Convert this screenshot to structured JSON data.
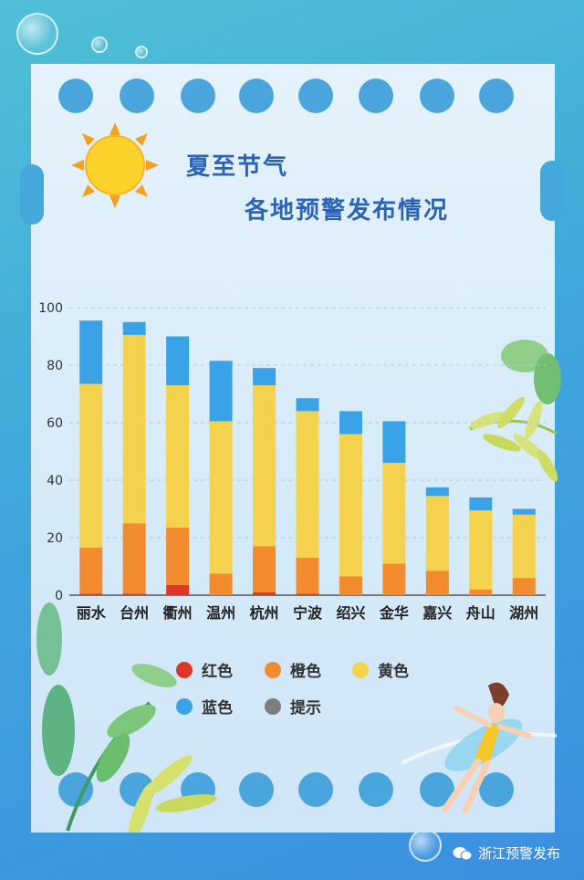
{
  "title": "夏至节气",
  "subtitle": "各地预警发布情况",
  "watermark": "浙江预警发布",
  "colors": {
    "red": "#e0362a",
    "orange": "#f28a2e",
    "yellow": "#f5d24d",
    "blue": "#3aa3e8",
    "gray": "#7d7d7d"
  },
  "legend": [
    {
      "label": "红色",
      "color": "#e0362a"
    },
    {
      "label": "橙色",
      "color": "#f28a2e"
    },
    {
      "label": "黄色",
      "color": "#f5d24d"
    },
    {
      "label": "蓝色",
      "color": "#3aa3e8"
    },
    {
      "label": "提示",
      "color": "#7d7d7d"
    }
  ],
  "chart_data": {
    "type": "bar",
    "stacked": true,
    "categories": [
      "丽水",
      "台州",
      "衢州",
      "温州",
      "杭州",
      "宁波",
      "绍兴",
      "金华",
      "嘉兴",
      "舟山",
      "湖州"
    ],
    "ylim": [
      0,
      100
    ],
    "yticks": [
      0,
      20,
      40,
      60,
      80,
      100
    ],
    "grid": "horizontal dashed",
    "legend_position": "bottom",
    "series": [
      {
        "name": "红色",
        "values": [
          0.5,
          0.5,
          3.5,
          0,
          1,
          0.5,
          0,
          0,
          0,
          0,
          0
        ]
      },
      {
        "name": "橙色",
        "values": [
          16,
          24.5,
          20,
          7.5,
          16,
          12.5,
          6.5,
          11,
          8.5,
          2,
          6
        ]
      },
      {
        "name": "黄色",
        "values": [
          57,
          65.5,
          49.5,
          53,
          56,
          51,
          49.5,
          35,
          26,
          27.5,
          22
        ]
      },
      {
        "name": "蓝色",
        "values": [
          22,
          4.5,
          17,
          21,
          6,
          4.5,
          8,
          14.5,
          3,
          4.5,
          2
        ]
      },
      {
        "name": "提示",
        "values": [
          0,
          0,
          0,
          0,
          0,
          0,
          0,
          0,
          0,
          0,
          0
        ]
      }
    ]
  }
}
